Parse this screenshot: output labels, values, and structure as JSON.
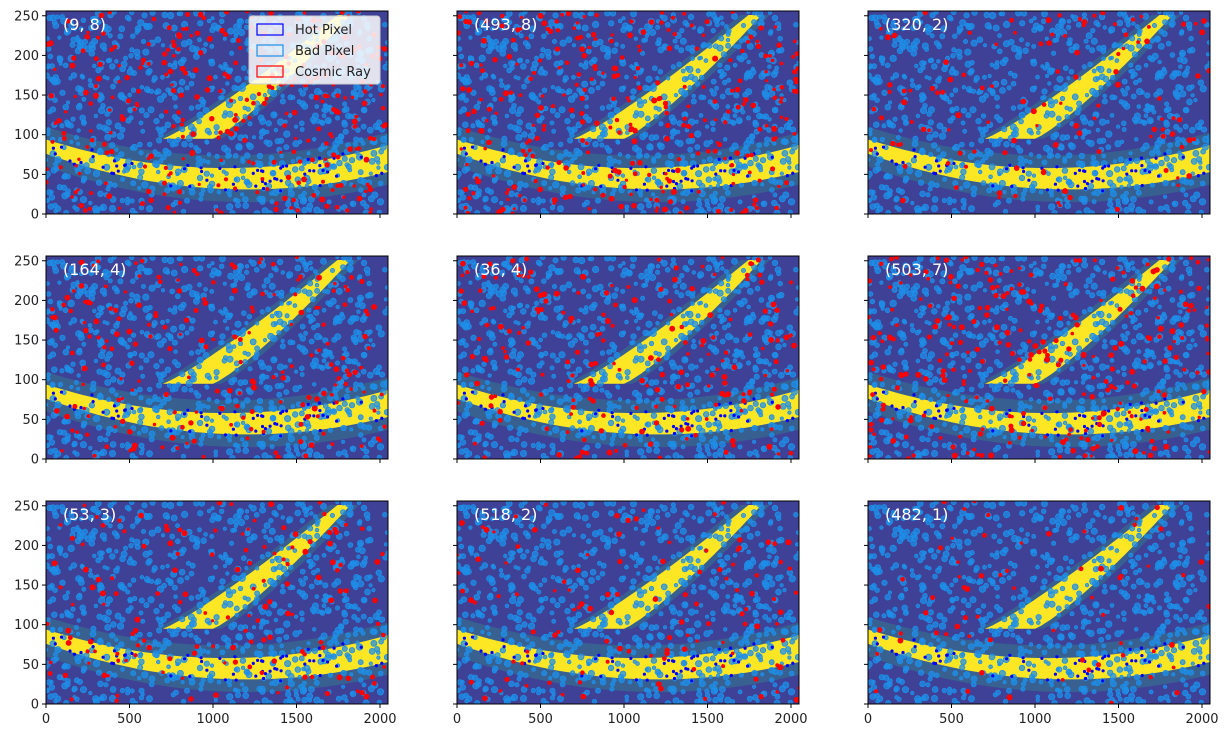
{
  "colors": {
    "background": "#3f4196",
    "arc": "#fde725",
    "arc_halo": "#2a9a8a",
    "hot_pixel": "#0000ff",
    "bad_pixel": "#1e8fe8",
    "cosmic_ray": "#ff0000"
  },
  "chart_data": {
    "type": "heatmap",
    "layout": {
      "rows": 3,
      "cols": 3,
      "sharex": true,
      "sharey": true
    },
    "xlim": [
      0,
      2048
    ],
    "ylim": [
      0,
      256
    ],
    "xticks": [
      0,
      500,
      1000,
      1500,
      2000
    ],
    "yticks": [
      0,
      50,
      100,
      150,
      200,
      250
    ],
    "legend": {
      "placement": "upper-right of first panel",
      "entries": [
        {
          "label": "Hot Pixel",
          "color": "#0000ff"
        },
        {
          "label": "Bad Pixel",
          "color": "#1e8fe8"
        },
        {
          "label": "Cosmic Ray",
          "color": "#ff0000"
        }
      ]
    },
    "panels": [
      {
        "label": "(9, 8)",
        "cosmic_ray_density": 0.9
      },
      {
        "label": "(493, 8)",
        "cosmic_ray_density": 0.9
      },
      {
        "label": "(320, 2)",
        "cosmic_ray_density": 0.35
      },
      {
        "label": "(164, 4)",
        "cosmic_ray_density": 0.6
      },
      {
        "label": "(36, 4)",
        "cosmic_ray_density": 0.6
      },
      {
        "label": "(503, 7)",
        "cosmic_ray_density": 0.85
      },
      {
        "label": "(53, 3)",
        "cosmic_ray_density": 0.45
      },
      {
        "label": "(518, 2)",
        "cosmic_ray_density": 0.35
      },
      {
        "label": "(482, 1)",
        "cosmic_ray_density": 0.2
      }
    ]
  }
}
